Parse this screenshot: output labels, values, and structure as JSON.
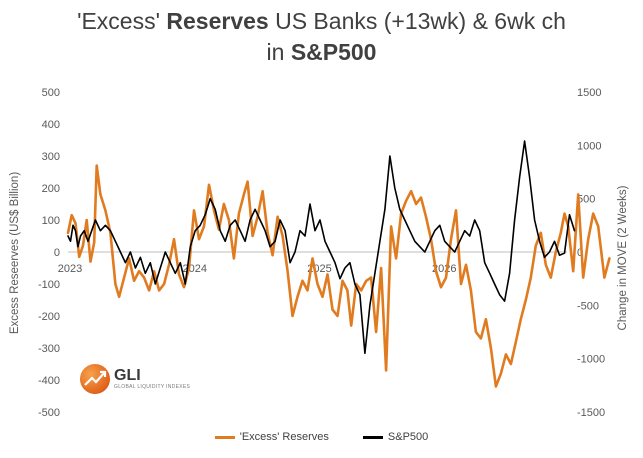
{
  "title": {
    "part1": "'Excess' ",
    "part2": "Reserves",
    "part3": " US Banks (+13wk) & 6wk ch",
    "part4": "in ",
    "part5": "S&P500"
  },
  "logo": {
    "name": "GLI",
    "tagline": "GLOBAL LIQUIDITY INDEXES"
  },
  "chart_data": {
    "type": "line",
    "ylabel_left": "Excess Reseerves (US$ Billion)",
    "ylabel_right": "Change in MOVE (2 Weeks)",
    "xlabel": "",
    "ylim_left": [
      -500,
      500
    ],
    "yticks_left": [
      -500,
      -400,
      -300,
      -200,
      -100,
      0,
      100,
      200,
      300,
      400,
      500
    ],
    "ylim_right": [
      -1500,
      1500
    ],
    "yticks_right": [
      -1500,
      -1000,
      -500,
      0,
      500,
      1000,
      1500
    ],
    "xlim": [
      2023.0,
      2027.0
    ],
    "xtick_labels": [
      {
        "x": 2023.0,
        "label": "2023"
      },
      {
        "x": 2024.0,
        "label": "2024"
      },
      {
        "x": 2025.0,
        "label": "2025"
      },
      {
        "x": 2026.0,
        "label": "2026"
      }
    ],
    "grid": false,
    "legend": "bottom",
    "series": [
      {
        "name": "'Excess' Reserves",
        "color": "#e07b20",
        "axis": "left",
        "points": [
          [
            2023.0,
            60
          ],
          [
            2023.03,
            115
          ],
          [
            2023.06,
            90
          ],
          [
            2023.09,
            -15
          ],
          [
            2023.12,
            20
          ],
          [
            2023.15,
            100
          ],
          [
            2023.18,
            -30
          ],
          [
            2023.21,
            30
          ],
          [
            2023.23,
            270
          ],
          [
            2023.26,
            180
          ],
          [
            2023.3,
            130
          ],
          [
            2023.34,
            60
          ],
          [
            2023.38,
            -100
          ],
          [
            2023.41,
            -140
          ],
          [
            2023.45,
            -80
          ],
          [
            2023.49,
            -20
          ],
          [
            2023.53,
            -90
          ],
          [
            2023.57,
            -60
          ],
          [
            2023.61,
            -80
          ],
          [
            2023.65,
            -120
          ],
          [
            2023.69,
            -60
          ],
          [
            2023.73,
            -120
          ],
          [
            2023.77,
            -100
          ],
          [
            2023.81,
            -40
          ],
          [
            2023.85,
            40
          ],
          [
            2023.89,
            -70
          ],
          [
            2023.93,
            -110
          ],
          [
            2023.97,
            -50
          ],
          [
            2024.01,
            130
          ],
          [
            2024.05,
            40
          ],
          [
            2024.09,
            80
          ],
          [
            2024.13,
            210
          ],
          [
            2024.17,
            130
          ],
          [
            2024.21,
            70
          ],
          [
            2024.25,
            150
          ],
          [
            2024.29,
            100
          ],
          [
            2024.33,
            -20
          ],
          [
            2024.37,
            120
          ],
          [
            2024.41,
            180
          ],
          [
            2024.44,
            220
          ],
          [
            2024.48,
            50
          ],
          [
            2024.52,
            110
          ],
          [
            2024.56,
            190
          ],
          [
            2024.6,
            60
          ],
          [
            2024.64,
            -10
          ],
          [
            2024.68,
            110
          ],
          [
            2024.72,
            50
          ],
          [
            2024.76,
            -60
          ],
          [
            2024.8,
            -200
          ],
          [
            2024.84,
            -140
          ],
          [
            2024.88,
            -90
          ],
          [
            2024.92,
            -120
          ],
          [
            2024.96,
            -20
          ],
          [
            2025.0,
            -100
          ],
          [
            2025.04,
            -140
          ],
          [
            2025.08,
            -70
          ],
          [
            2025.12,
            -180
          ],
          [
            2025.16,
            -200
          ],
          [
            2025.2,
            -90
          ],
          [
            2025.24,
            -120
          ],
          [
            2025.27,
            -230
          ],
          [
            2025.31,
            -100
          ],
          [
            2025.35,
            -120
          ],
          [
            2025.39,
            -90
          ],
          [
            2025.43,
            -80
          ],
          [
            2025.47,
            -250
          ],
          [
            2025.51,
            -50
          ],
          [
            2025.55,
            -370
          ],
          [
            2025.59,
            80
          ],
          [
            2025.63,
            -20
          ],
          [
            2025.67,
            120
          ],
          [
            2025.71,
            160
          ],
          [
            2025.75,
            190
          ],
          [
            2025.79,
            150
          ],
          [
            2025.83,
            170
          ],
          [
            2025.87,
            110
          ],
          [
            2025.91,
            40
          ],
          [
            2025.95,
            -60
          ],
          [
            2025.99,
            -110
          ],
          [
            2026.03,
            -80
          ],
          [
            2026.07,
            40
          ],
          [
            2026.11,
            130
          ],
          [
            2026.15,
            -100
          ],
          [
            2026.19,
            -40
          ],
          [
            2026.23,
            -120
          ],
          [
            2026.27,
            -250
          ],
          [
            2026.31,
            -270
          ],
          [
            2026.35,
            -210
          ],
          [
            2026.39,
            -300
          ],
          [
            2026.43,
            -420
          ],
          [
            2026.47,
            -380
          ],
          [
            2026.51,
            -320
          ],
          [
            2026.55,
            -350
          ],
          [
            2026.59,
            -280
          ],
          [
            2026.63,
            -210
          ],
          [
            2026.67,
            -150
          ],
          [
            2026.71,
            -80
          ],
          [
            2026.75,
            20
          ],
          [
            2026.79,
            60
          ],
          [
            2026.83,
            -40
          ],
          [
            2026.87,
            -80
          ],
          [
            2026.91,
            0
          ],
          [
            2026.95,
            60
          ],
          [
            2026.98,
            120
          ],
          [
            2027.01,
            80
          ],
          [
            2027.05,
            -60
          ],
          [
            2027.09,
            180
          ],
          [
            2027.13,
            -80
          ],
          [
            2027.17,
            40
          ],
          [
            2027.21,
            120
          ],
          [
            2027.25,
            80
          ],
          [
            2027.3,
            -80
          ],
          [
            2027.34,
            -20
          ]
        ]
      },
      {
        "name": "S&P500",
        "color": "#000000",
        "axis": "right",
        "points": [
          [
            2023.0,
            150
          ],
          [
            2023.02,
            100
          ],
          [
            2023.04,
            250
          ],
          [
            2023.06,
            200
          ],
          [
            2023.08,
            50
          ],
          [
            2023.1,
            150
          ],
          [
            2023.13,
            200
          ],
          [
            2023.16,
            100
          ],
          [
            2023.19,
            200
          ],
          [
            2023.22,
            300
          ],
          [
            2023.26,
            200
          ],
          [
            2023.3,
            250
          ],
          [
            2023.34,
            200
          ],
          [
            2023.38,
            100
          ],
          [
            2023.42,
            0
          ],
          [
            2023.46,
            -100
          ],
          [
            2023.5,
            0
          ],
          [
            2023.54,
            -150
          ],
          [
            2023.58,
            -50
          ],
          [
            2023.62,
            -200
          ],
          [
            2023.66,
            -100
          ],
          [
            2023.7,
            -300
          ],
          [
            2023.74,
            -150
          ],
          [
            2023.78,
            0
          ],
          [
            2023.82,
            -100
          ],
          [
            2023.86,
            -200
          ],
          [
            2023.9,
            -100
          ],
          [
            2023.94,
            -300
          ],
          [
            2023.98,
            50
          ],
          [
            2024.02,
            200
          ],
          [
            2024.06,
            250
          ],
          [
            2024.1,
            350
          ],
          [
            2024.14,
            500
          ],
          [
            2024.18,
            400
          ],
          [
            2024.22,
            200
          ],
          [
            2024.26,
            100
          ],
          [
            2024.3,
            250
          ],
          [
            2024.34,
            300
          ],
          [
            2024.38,
            200
          ],
          [
            2024.42,
            100
          ],
          [
            2024.46,
            300
          ],
          [
            2024.5,
            400
          ],
          [
            2024.54,
            300
          ],
          [
            2024.58,
            200
          ],
          [
            2024.62,
            50
          ],
          [
            2024.66,
            100
          ],
          [
            2024.7,
            300
          ],
          [
            2024.74,
            200
          ],
          [
            2024.78,
            -100
          ],
          [
            2024.82,
            0
          ],
          [
            2024.86,
            200
          ],
          [
            2024.9,
            150
          ],
          [
            2024.94,
            450
          ],
          [
            2024.98,
            200
          ],
          [
            2025.02,
            300
          ],
          [
            2025.06,
            100
          ],
          [
            2025.1,
            0
          ],
          [
            2025.14,
            -100
          ],
          [
            2025.18,
            -250
          ],
          [
            2025.22,
            -150
          ],
          [
            2025.26,
            -100
          ],
          [
            2025.3,
            -300
          ],
          [
            2025.34,
            -400
          ],
          [
            2025.38,
            -950
          ],
          [
            2025.42,
            -500
          ],
          [
            2025.46,
            -200
          ],
          [
            2025.5,
            100
          ],
          [
            2025.54,
            400
          ],
          [
            2025.58,
            900
          ],
          [
            2025.62,
            600
          ],
          [
            2025.66,
            400
          ],
          [
            2025.7,
            300
          ],
          [
            2025.74,
            200
          ],
          [
            2025.78,
            100
          ],
          [
            2025.82,
            50
          ],
          [
            2025.86,
            0
          ],
          [
            2025.9,
            100
          ],
          [
            2025.94,
            200
          ],
          [
            2025.98,
            250
          ],
          [
            2026.02,
            100
          ],
          [
            2026.06,
            50
          ],
          [
            2026.1,
            0
          ],
          [
            2026.14,
            100
          ],
          [
            2026.18,
            200
          ],
          [
            2026.22,
            150
          ],
          [
            2026.26,
            300
          ],
          [
            2026.3,
            200
          ],
          [
            2026.34,
            -100
          ],
          [
            2026.38,
            -200
          ],
          [
            2026.42,
            -300
          ],
          [
            2026.46,
            -400
          ],
          [
            2026.5,
            -460
          ],
          [
            2026.54,
            -200
          ],
          [
            2026.58,
            300
          ],
          [
            2026.62,
            700
          ],
          [
            2026.66,
            1040
          ],
          [
            2026.7,
            700
          ],
          [
            2026.74,
            300
          ],
          [
            2026.78,
            100
          ],
          [
            2026.82,
            -50
          ],
          [
            2026.86,
            0
          ],
          [
            2026.9,
            100
          ],
          [
            2026.94,
            -30
          ],
          [
            2026.98,
            -10
          ],
          [
            2027.02,
            350
          ],
          [
            2027.06,
            200
          ]
        ]
      }
    ]
  }
}
